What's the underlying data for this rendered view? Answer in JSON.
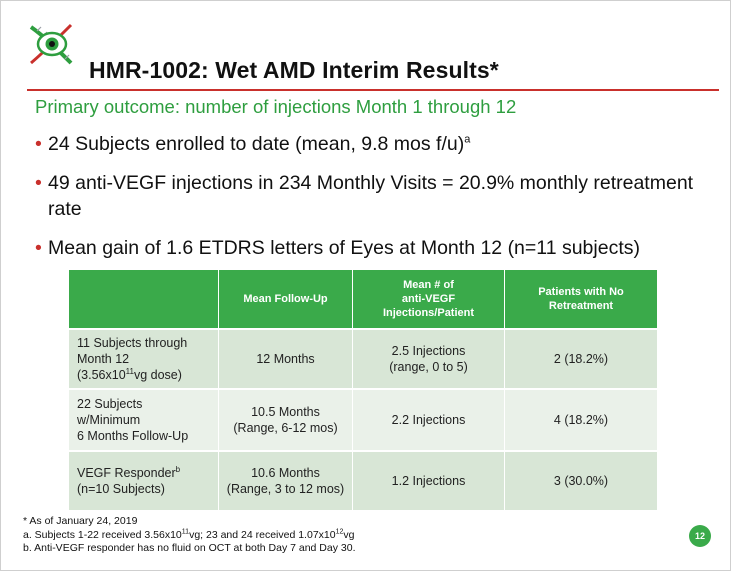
{
  "header": {
    "title": "HMR-1002: Wet AMD Interim Results*",
    "subtitle": "Primary outcome: number of injections Month 1 through 12"
  },
  "bullets": {
    "b1_text": "24 Subjects enrolled to date (mean, 9.8 mos f/u)",
    "b1_sup": "a",
    "b2_text": "49 anti-VEGF injections in 234 Monthly Visits = 20.9% monthly retreatment rate",
    "b3_text": "Mean gain of 1.6 ETDRS letters of Eyes at Month 12 (n=11 subjects)"
  },
  "table": {
    "headers": [
      "",
      "Mean Follow-Up",
      "Mean # of",
      "anti-VEGF",
      "Injections/Patient",
      "Patients with No",
      "Retreatment"
    ],
    "rows": [
      {
        "label_l1": "11 Subjects through",
        "label_l2": "Month 12",
        "label_l3a": "(3.56x10",
        "label_l3sup": "11",
        "label_l3b": "vg dose)",
        "followup_l1": "12 Months",
        "injections_l1": "2.5 Injections",
        "injections_l2": "(range, 0 to 5)",
        "no_retreatment": "2 (18.2%)"
      },
      {
        "label_l1": "22 Subjects",
        "label_l2": "w/Minimum",
        "label_l3": "6 Months Follow-Up",
        "followup_l1": "10.5 Months",
        "followup_l2": "(Range, 6-12 mos)",
        "injections_l1": "2.2 Injections",
        "no_retreatment": "4 (18.2%)"
      },
      {
        "label_l1": "VEGF Responder",
        "label_l1sup": "b",
        "label_l2": "(n=10 Subjects)",
        "followup_l1": "10.6 Months",
        "followup_l2": "(Range, 3 to 12 mos)",
        "injections_l1": "1.2 Injections",
        "no_retreatment": "3 (30.0%)"
      }
    ]
  },
  "footnotes": {
    "star": "* As of January 24, 2019",
    "a_pre": "a. Subjects 1-22 received 3.56x10",
    "a_sup1": "11",
    "a_mid": "vg; 23 and 24 received 1.07x10",
    "a_sup2": "12",
    "a_post": "vg",
    "b": "b. Anti-VEGF responder has no fluid on OCT at both Day 7 and Day 30."
  },
  "page_number": "12",
  "colors": {
    "accent_green": "#3aaa4a",
    "subtitle_green": "#2e9e3f",
    "rule_red": "#c9302c",
    "row_dark": "#d8e6d6",
    "row_light": "#eaf1e9"
  },
  "icons": [
    "dna-eye-logo-icon"
  ]
}
